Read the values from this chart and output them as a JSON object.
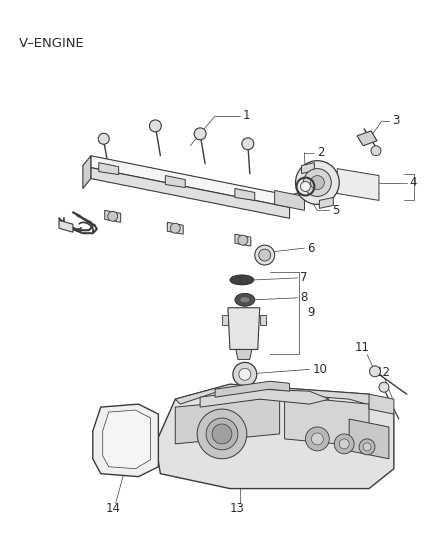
{
  "title": "V–ENGINE",
  "bg_color": "#ffffff",
  "text_color": "#2a2a2a",
  "line_color": "#3a3a3a",
  "figsize": [
    4.38,
    5.33
  ],
  "dpi": 100,
  "upper_assembly": {
    "rail_color": "#f2f2f2",
    "rail_edge": "#3a3a3a",
    "bolt_color": "#e5e5e5",
    "small_part_color": "#cccccc"
  },
  "lower_assembly": {
    "body_color": "#e8e8e8",
    "gasket_color": "#f0f0f0",
    "dark_color": "#555555"
  }
}
